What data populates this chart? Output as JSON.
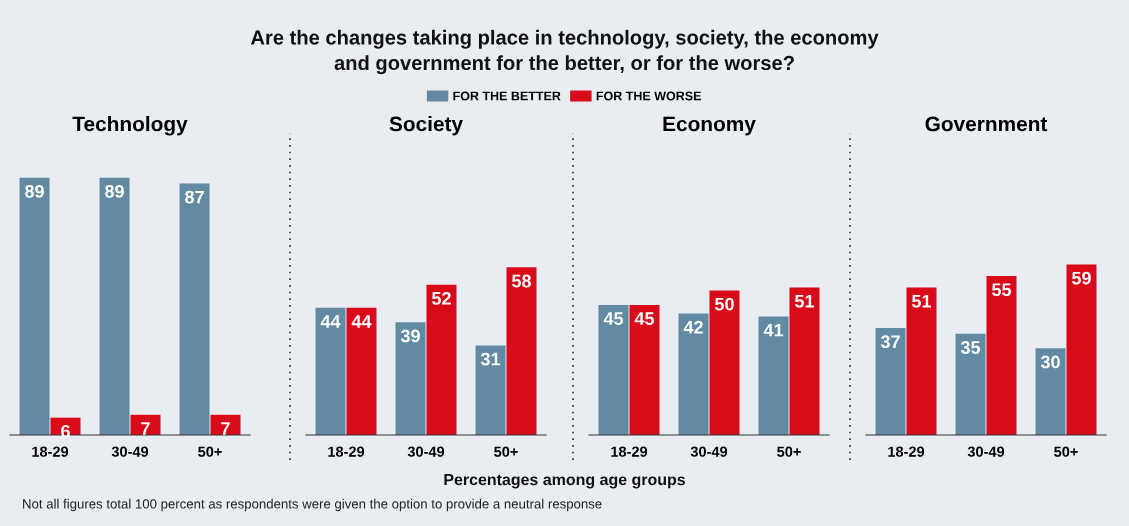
{
  "chart_data": [
    {
      "type": "other",
      "title": "Are the changes taking place in technology, society, the economy\nand government for the better, or for the worse?",
      "annotations": [
        "Percentages among age groups",
        "Not all figures total 100 percent as respondents were given the option to provide a neutral response"
      ]
    },
    {
      "type": "bar",
      "title": "Technology",
      "categories": [
        "18-29",
        "30-49",
        "50+"
      ],
      "legend": "top",
      "data_labels": true,
      "series": [
        {
          "name": "FOR THE BETTER",
          "color": "#628aa3",
          "values": [
            89,
            89,
            87
          ]
        },
        {
          "name": "FOR THE WORSE",
          "color": "#d90b1a",
          "values": [
            6,
            7,
            7
          ]
        }
      ]
    },
    {
      "type": "bar",
      "title": "Society",
      "categories": [
        "18-29",
        "30-49",
        "50+"
      ],
      "data_labels": true,
      "series": [
        {
          "color": "#628aa3",
          "values": [
            44,
            39,
            31
          ]
        },
        {
          "color": "#d90b1a",
          "values": [
            44,
            52,
            58
          ]
        }
      ]
    },
    {
      "type": "bar",
      "title": "Economy",
      "categories": [
        "18-29",
        "30-49",
        "50+"
      ],
      "data_labels": true,
      "series": [
        {
          "color": "#628aa3",
          "values": [
            45,
            42,
            41
          ]
        },
        {
          "color": "#d90b1a",
          "values": [
            45,
            50,
            51
          ]
        }
      ]
    },
    {
      "type": "bar",
      "title": "Government",
      "categories": [
        "18-29",
        "30-49",
        "50+"
      ],
      "data_labels": true,
      "series": [
        {
          "color": "#628aa3",
          "values": [
            37,
            35,
            30
          ]
        },
        {
          "color": "#d90b1a",
          "values": [
            51,
            55,
            59
          ]
        }
      ]
    }
  ]
}
